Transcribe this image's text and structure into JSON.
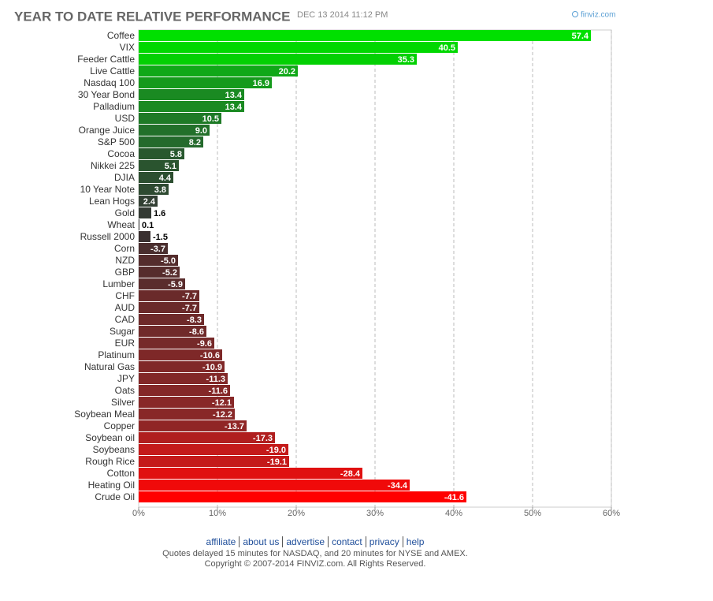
{
  "chart_data": {
    "type": "bar",
    "orientation": "horizontal",
    "title": "YEAR TO DATE RELATIVE PERFORMANCE",
    "subtitle": "DEC 13 2014 11:12 PM",
    "brand": "finviz.com",
    "categories": [
      "Coffee",
      "VIX",
      "Feeder Cattle",
      "Live Cattle",
      "Nasdaq 100",
      "30 Year Bond",
      "Palladium",
      "USD",
      "Orange Juice",
      "S&P 500",
      "Cocoa",
      "Nikkei 225",
      "DJIA",
      "10 Year Note",
      "Lean Hogs",
      "Gold",
      "Wheat",
      "Russell 2000",
      "Corn",
      "NZD",
      "GBP",
      "Lumber",
      "CHF",
      "AUD",
      "CAD",
      "Sugar",
      "EUR",
      "Platinum",
      "Natural Gas",
      "JPY",
      "Oats",
      "Silver",
      "Soybean Meal",
      "Copper",
      "Soybean oil",
      "Soybeans",
      "Rough Rice",
      "Cotton",
      "Heating Oil",
      "Crude Oil"
    ],
    "values": [
      57.4,
      40.5,
      35.3,
      20.2,
      16.9,
      13.4,
      13.4,
      10.5,
      9.0,
      8.2,
      5.8,
      5.1,
      4.4,
      3.8,
      2.4,
      1.6,
      0.1,
      -1.5,
      -3.7,
      -5.0,
      -5.2,
      -5.9,
      -7.7,
      -7.7,
      -8.3,
      -8.6,
      -9.6,
      -10.6,
      -10.9,
      -11.3,
      -11.6,
      -12.1,
      -12.2,
      -13.7,
      -17.3,
      -19.0,
      -19.1,
      -28.4,
      -34.4,
      -41.6
    ],
    "value_labels": [
      "57.4",
      "40.5",
      "35.3",
      "20.2",
      "16.9",
      "13.4",
      "13.4",
      "10.5",
      "9.0",
      "8.2",
      "5.8",
      "5.1",
      "4.4",
      "3.8",
      "2.4",
      "1.6",
      "0.1",
      "-1.5",
      "-3.7",
      "-5.0",
      "-5.2",
      "-5.9",
      "-7.7",
      "-7.7",
      "-8.3",
      "-8.6",
      "-9.6",
      "-10.6",
      "-10.9",
      "-11.3",
      "-11.6",
      "-12.1",
      "-12.2",
      "-13.7",
      "-17.3",
      "-19.0",
      "-19.1",
      "-28.4",
      "-34.4",
      "-41.6"
    ],
    "colors": [
      "#00e000",
      "#00d800",
      "#03d003",
      "#10a818",
      "#159a1c",
      "#1a8a22",
      "#1a8a22",
      "#1e7a26",
      "#22702a",
      "#246a2c",
      "#28582e",
      "#2a542f",
      "#2c4e30",
      "#2e4a31",
      "#323f33",
      "#343a34",
      "#363636",
      "#3a3030",
      "#4a2e2e",
      "#542c2c",
      "#562c2c",
      "#5a2c2c",
      "#6a2a2a",
      "#6a2a2a",
      "#6e2a2a",
      "#702a2a",
      "#762a2a",
      "#7e2828",
      "#802828",
      "#822828",
      "#842828",
      "#882828",
      "#882828",
      "#902626",
      "#b01e1e",
      "#c41a1a",
      "#c41a1a",
      "#e01010",
      "#f00a0a",
      "#ff0000"
    ],
    "xlim": [
      0,
      60
    ],
    "xticks": [
      {
        "value": 0,
        "label": "0%"
      },
      {
        "value": 10,
        "label": "10%"
      },
      {
        "value": 20,
        "label": "20%"
      },
      {
        "value": 30,
        "label": "30%"
      },
      {
        "value": 40,
        "label": "40%"
      },
      {
        "value": 50,
        "label": "50%"
      },
      {
        "value": 60,
        "label": "60%"
      }
    ],
    "grid": true
  },
  "footer": {
    "links": [
      "affiliate",
      "about us",
      "advertise",
      "contact",
      "privacy",
      "help"
    ],
    "lines": [
      "Quotes delayed 15 minutes for NASDAQ, and 20 minutes for NYSE and AMEX.",
      "Copyright © 2007-2014 FINVIZ.com. All Rights Reserved."
    ]
  }
}
